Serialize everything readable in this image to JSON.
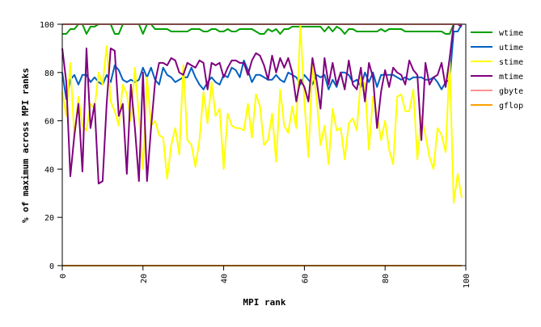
{
  "chart_data": {
    "type": "line",
    "xlabel": "MPI rank",
    "ylabel": "% of maximum across MPI ranks",
    "xlim": [
      0,
      100
    ],
    "ylim": [
      0,
      100
    ],
    "x_ticks": [
      0,
      20,
      40,
      60,
      80,
      100
    ],
    "y_ticks": [
      0,
      20,
      40,
      60,
      80,
      100
    ],
    "x_tick_labels": [
      "0",
      "20",
      "40",
      "60",
      "80",
      "100"
    ],
    "y_tick_labels": [
      "0",
      "20",
      "40",
      "60",
      "80",
      "100"
    ],
    "grid": false,
    "legend_position": "right",
    "series": [
      {
        "name": "wtime",
        "color": "#00a000",
        "values": [
          96,
          96,
          98,
          98,
          100,
          100,
          96,
          99,
          99,
          100,
          100,
          100,
          100,
          96,
          96,
          100,
          100,
          100,
          100,
          100,
          96,
          100,
          100,
          98,
          98,
          98,
          98,
          97,
          97,
          97,
          97,
          97,
          98,
          98,
          98,
          97,
          97,
          98,
          98,
          97,
          97,
          98,
          97,
          97,
          98,
          98,
          98,
          98,
          97,
          96,
          96,
          98,
          97,
          98,
          96,
          98,
          98,
          99,
          99,
          99,
          99,
          99,
          99,
          99,
          99,
          97,
          99,
          97,
          99,
          98,
          96,
          98,
          98,
          97,
          97,
          97,
          97,
          97,
          97,
          98,
          97,
          98,
          98,
          98,
          98,
          97,
          97,
          97,
          97,
          97,
          97,
          97,
          97,
          97,
          97,
          96,
          96,
          100,
          100,
          100
        ]
      },
      {
        "name": "utime",
        "color": "#0060c0",
        "values": [
          80,
          69,
          77,
          79,
          75,
          79,
          79,
          76,
          78,
          76,
          75,
          79,
          76,
          83,
          81,
          77,
          76,
          77,
          76,
          77,
          82,
          78,
          82,
          77,
          75,
          82,
          79,
          78,
          76,
          77,
          78,
          78,
          82,
          78,
          75,
          73,
          76,
          78,
          76,
          75,
          79,
          78,
          82,
          81,
          78,
          85,
          81,
          76,
          79,
          79,
          78,
          77,
          77,
          79,
          77,
          76,
          80,
          79,
          78,
          75,
          79,
          77,
          75,
          79,
          78,
          79,
          73,
          77,
          74,
          80,
          80,
          79,
          76,
          77,
          74,
          80,
          76,
          80,
          74,
          79,
          79,
          79,
          79,
          78,
          77,
          78,
          77,
          78,
          78,
          78,
          77,
          77,
          78,
          76,
          73,
          76,
          77,
          97,
          97,
          100
        ]
      },
      {
        "name": "stime",
        "color": "#ffff00",
        "values": [
          72,
          62,
          84,
          53,
          70,
          58,
          56,
          67,
          65,
          80,
          75,
          91,
          68,
          64,
          58,
          75,
          71,
          60,
          82,
          62,
          40,
          78,
          58,
          60,
          54,
          53,
          36,
          50,
          57,
          46,
          83,
          52,
          50,
          41,
          52,
          72,
          59,
          76,
          62,
          65,
          40,
          63,
          58,
          57,
          57,
          56,
          67,
          53,
          71,
          66,
          50,
          52,
          63,
          43,
          73,
          58,
          55,
          66,
          57,
          100,
          68,
          45,
          83,
          70,
          50,
          58,
          42,
          65,
          56,
          57,
          44,
          59,
          61,
          56,
          78,
          75,
          48,
          70,
          63,
          52,
          60,
          48,
          42,
          70,
          71,
          64,
          64,
          73,
          44,
          62,
          54,
          45,
          40,
          57,
          54,
          47,
          85,
          26,
          38,
          28
        ]
      },
      {
        "name": "mtime",
        "color": "#800080",
        "values": [
          90,
          76,
          37,
          54,
          67,
          39,
          90,
          57,
          67,
          34,
          35,
          67,
          90,
          89,
          62,
          67,
          38,
          75,
          57,
          35,
          80,
          35,
          57,
          76,
          84,
          84,
          83,
          86,
          85,
          80,
          79,
          84,
          83,
          82,
          85,
          84,
          73,
          84,
          83,
          84,
          78,
          82,
          85,
          85,
          84,
          84,
          79,
          85,
          88,
          87,
          83,
          77,
          87,
          80,
          86,
          82,
          86,
          80,
          68,
          77,
          74,
          68,
          86,
          77,
          65,
          86,
          75,
          84,
          75,
          80,
          73,
          85,
          75,
          73,
          82,
          68,
          84,
          78,
          57,
          72,
          81,
          74,
          82,
          80,
          79,
          75,
          85,
          81,
          79,
          52,
          84,
          75,
          78,
          79,
          84,
          74,
          86,
          100,
          100,
          99
        ]
      },
      {
        "name": "gbyte",
        "color": "#ff9090",
        "values": [
          100,
          100,
          100,
          100,
          100,
          100,
          100,
          100,
          100,
          100,
          100,
          100,
          100,
          100,
          100,
          100,
          100,
          100,
          100,
          100,
          100,
          100,
          100,
          100,
          100,
          100,
          100,
          100,
          100,
          100,
          100,
          100,
          100,
          100,
          100,
          100,
          100,
          100,
          100,
          100,
          100,
          100,
          100,
          100,
          100,
          100,
          100,
          100,
          100,
          100,
          100,
          100,
          100,
          100,
          100,
          100,
          100,
          100,
          100,
          100,
          100,
          100,
          100,
          100,
          100,
          100,
          100,
          100,
          100,
          100,
          100,
          100,
          100,
          100,
          100,
          100,
          100,
          100,
          100,
          100,
          100,
          100,
          100,
          100,
          100,
          100,
          100,
          100,
          100,
          100,
          100,
          100,
          100,
          100,
          100,
          100,
          100,
          100,
          100,
          100
        ]
      },
      {
        "name": "gflop",
        "color": "#ffa000",
        "values": [
          0,
          0,
          0,
          0,
          0,
          0,
          0,
          0,
          0,
          0,
          0,
          0,
          0,
          0,
          0,
          0,
          0,
          0,
          0,
          0,
          0,
          0,
          0,
          0,
          0,
          0,
          0,
          0,
          0,
          0,
          0,
          0,
          0,
          0,
          0,
          0,
          0,
          0,
          0,
          0,
          0,
          0,
          0,
          0,
          0,
          0,
          0,
          0,
          0,
          0,
          0,
          0,
          0,
          0,
          0,
          0,
          0,
          0,
          0,
          0,
          0,
          0,
          0,
          0,
          0,
          0,
          0,
          0,
          0,
          0,
          0,
          0,
          0,
          0,
          0,
          0,
          0,
          0,
          0,
          0,
          0,
          0,
          0,
          0,
          0,
          0,
          0,
          0,
          0,
          0,
          0,
          0,
          0,
          0,
          0,
          0,
          0,
          0,
          0,
          0
        ]
      }
    ]
  }
}
